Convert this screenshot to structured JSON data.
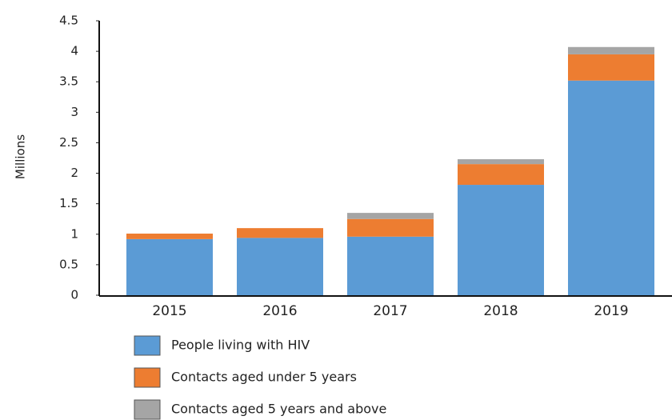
{
  "chart_data": {
    "type": "stacked_bar",
    "y_label": "Millions",
    "categories": [
      "2015",
      "2016",
      "2017",
      "2018",
      "2019"
    ],
    "series": [
      {
        "name": "People living with HIV",
        "color": "#5b9bd5",
        "values": [
          0.92,
          0.94,
          0.96,
          1.81,
          3.52
        ]
      },
      {
        "name": "Contacts aged under 5 years",
        "color": "#ed7d31",
        "values": [
          0.09,
          0.16,
          0.29,
          0.34,
          0.43
        ]
      },
      {
        "name": "Contacts aged 5 years and above",
        "color": "#a5a5a5",
        "values": [
          0,
          0,
          0.1,
          0.08,
          0.12
        ]
      }
    ],
    "ylim": [
      0,
      4.5
    ],
    "yticks": [
      0,
      0.5,
      1,
      1.5,
      2,
      2.5,
      3,
      3.5,
      4,
      4.5
    ],
    "grid": false,
    "legend": "bottom"
  }
}
